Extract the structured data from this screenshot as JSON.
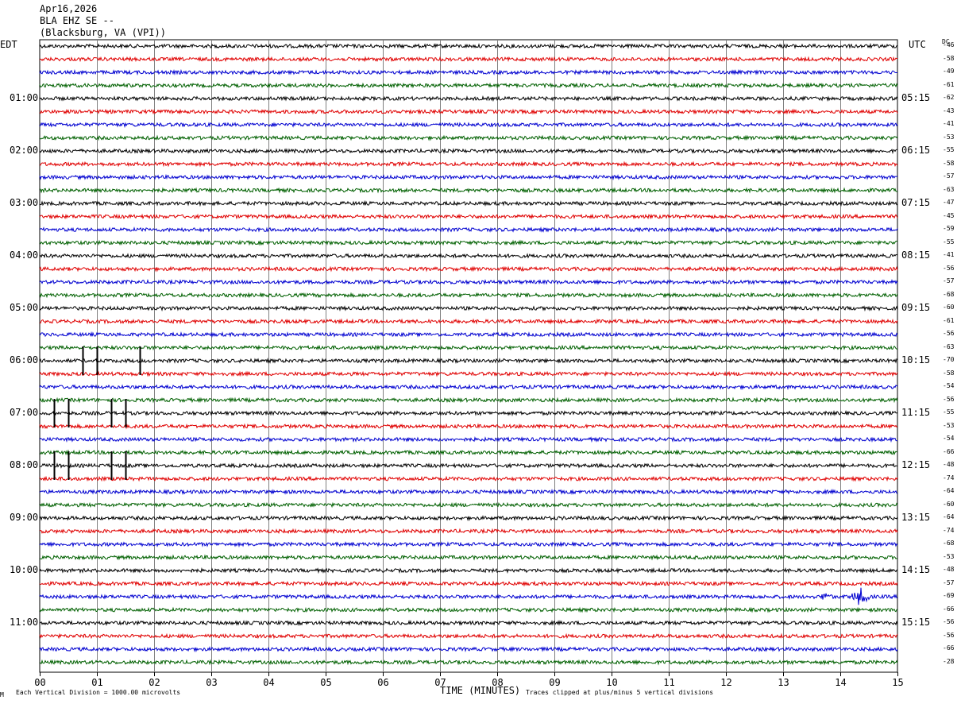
{
  "header": {
    "date": "Apr16,2026",
    "station": "BLA EHZ SE --",
    "location": "(Blacksburg, VA (VPI))"
  },
  "left_axis_title": "EDT",
  "right_axis_title": "UTC",
  "dc_title": "DC",
  "footer": {
    "corner_mark": "M",
    "scale_note": "Each Vertical Division = 1000.00 microvolts",
    "xlabel": "TIME (MINUTES)",
    "clip_note": "Traces clipped at plus/minus 5 vertical divisions"
  },
  "colors": {
    "trace_cycle": [
      "#000000",
      "#e00000",
      "#0000d0",
      "#006000"
    ],
    "grid": "#808080"
  },
  "chart_data": {
    "type": "line",
    "title": "BLA EHZ SE --",
    "xlabel": "TIME (MINUTES)",
    "xlim": [
      0,
      15
    ],
    "x_ticks": [
      "00",
      "01",
      "02",
      "03",
      "04",
      "05",
      "06",
      "07",
      "08",
      "09",
      "10",
      "11",
      "12",
      "13",
      "14",
      "15"
    ],
    "rows_per_hour": 4,
    "left_time_labels": [
      "01:00",
      "02:00",
      "03:00",
      "04:00",
      "05:00",
      "06:00",
      "07:00",
      "08:00",
      "09:00",
      "10:00",
      "11:00"
    ],
    "right_time_labels": [
      "05:15",
      "06:15",
      "07:15",
      "08:15",
      "09:15",
      "10:15",
      "11:15",
      "12:15",
      "13:15",
      "14:15",
      "15:15"
    ],
    "label_first_row": 4,
    "dc_offsets": [
      "-46",
      "-58",
      "-49",
      "-61",
      "-62",
      "-43",
      "-41",
      "-53",
      "-55",
      "-58",
      "-57",
      "-63",
      "-47",
      "-45",
      "-59",
      "-55",
      "-41",
      "-56",
      "-57",
      "-68",
      "-60",
      "-61",
      "-56",
      "-63",
      "-70",
      "-58",
      "-54",
      "-56",
      "-55",
      "-53",
      "-54",
      "-66",
      "-48",
      "-74",
      "-64",
      "-60",
      "-64",
      "-74",
      "-68",
      "-53",
      "-48",
      "-57",
      "-69",
      "-66",
      "-56",
      "-56",
      "-66",
      "-28"
    ],
    "clipped_spikes": [
      {
        "row": 24,
        "x": 0.75
      },
      {
        "row": 24,
        "x": 1.0
      },
      {
        "row": 24,
        "x": 1.75
      },
      {
        "row": 28,
        "x": 0.25
      },
      {
        "row": 28,
        "x": 0.5
      },
      {
        "row": 28,
        "x": 1.25
      },
      {
        "row": 28,
        "x": 1.5
      },
      {
        "row": 32,
        "x": 0.25
      },
      {
        "row": 32,
        "x": 0.5
      },
      {
        "row": 32,
        "x": 1.25
      },
      {
        "row": 32,
        "x": 1.5
      }
    ],
    "events": [
      {
        "row": 42,
        "x_start": 13.65,
        "x_end": 13.85,
        "amplitude": "medium"
      },
      {
        "row": 42,
        "x_start": 14.2,
        "x_end": 14.5,
        "amplitude": "large"
      }
    ]
  }
}
